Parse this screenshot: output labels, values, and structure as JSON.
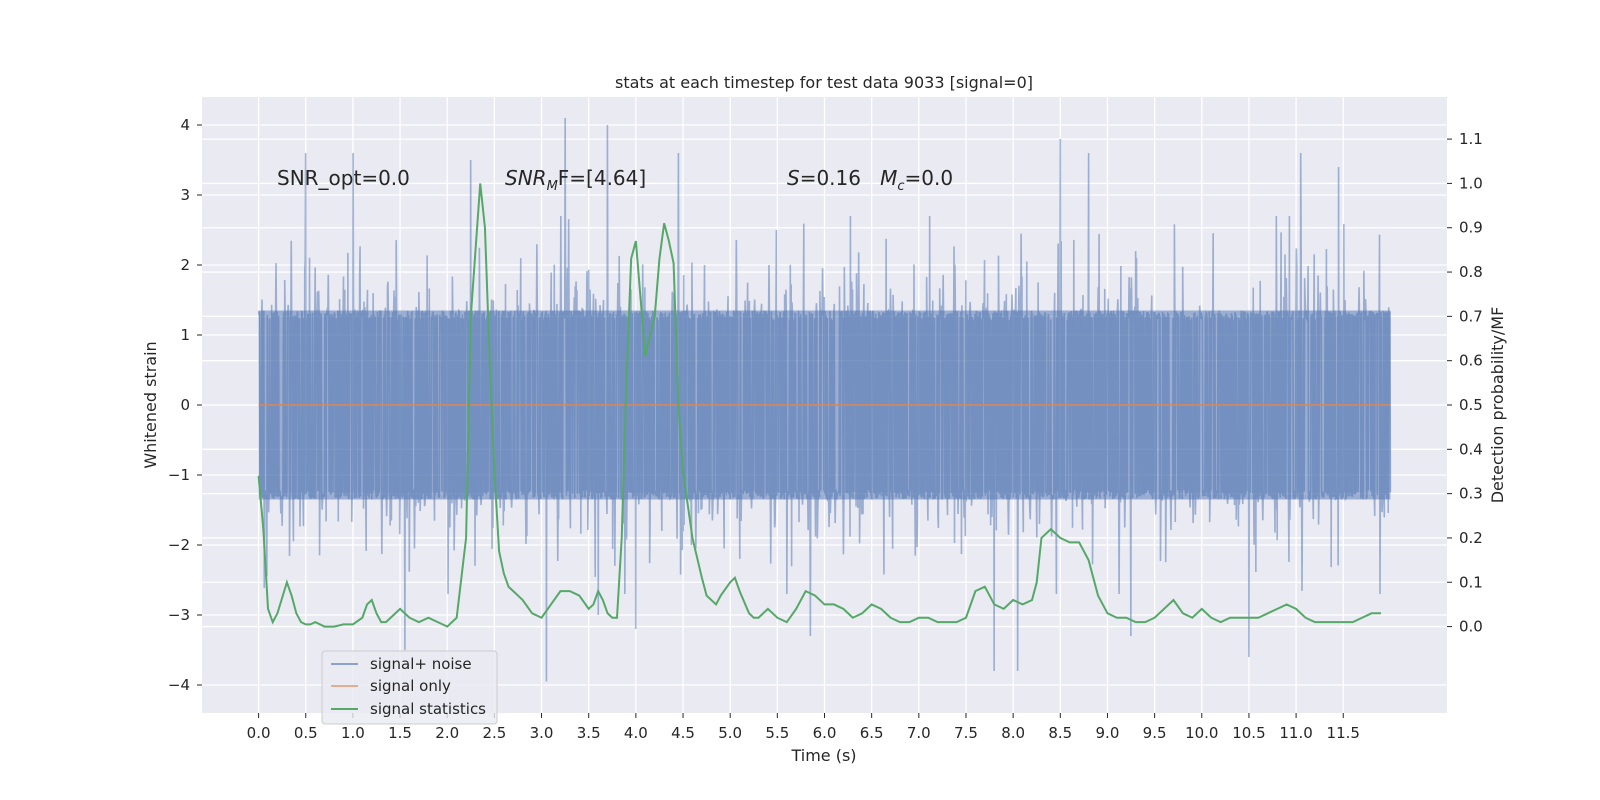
{
  "chart_data": {
    "type": "line",
    "title": "stats at each timestep for test data 9033 [signal=0]",
    "xlabel": "Time (s)",
    "ylabel": "Whitened strain",
    "y2label": "Detection probability/MF",
    "xlim": [
      -0.6,
      12.6
    ],
    "ylim": [
      -4.4,
      4.4
    ],
    "y2lim": [
      -0.195,
      1.195
    ],
    "x_ticks": [
      0.0,
      0.5,
      1.0,
      1.5,
      2.0,
      2.5,
      3.0,
      3.5,
      4.0,
      4.5,
      5.0,
      5.5,
      6.0,
      6.5,
      7.0,
      7.5,
      8.0,
      8.5,
      9.0,
      9.5,
      10.0,
      10.5,
      11.0,
      11.5
    ],
    "x_tick_labels": [
      "0.0",
      "0.5",
      "1.0",
      "1.5",
      "2.0",
      "2.5",
      "3.0",
      "3.5",
      "4.0",
      "4.5",
      "5.0",
      "5.5",
      "6.0",
      "6.5",
      "7.0",
      "7.5",
      "8.0",
      "8.5",
      "9.0",
      "9.5",
      "10.0",
      "10.5",
      "11.0",
      "11.5"
    ],
    "y_ticks": [
      -4,
      -3,
      -2,
      -1,
      0,
      1,
      2,
      3,
      4
    ],
    "y_tick_labels": [
      "−4",
      "−3",
      "−2",
      "−1",
      "0",
      "1",
      "2",
      "3",
      "4"
    ],
    "y2_ticks": [
      0.0,
      0.1,
      0.2,
      0.3,
      0.4,
      0.5,
      0.6,
      0.7,
      0.8,
      0.9,
      1.0,
      1.1
    ],
    "y2_tick_labels": [
      "0.0",
      "0.1",
      "0.2",
      "0.3",
      "0.4",
      "0.5",
      "0.6",
      "0.7",
      "0.8",
      "0.9",
      "1.0",
      "1.1"
    ],
    "noise": {
      "name": "signal+ noise",
      "color": "#4c72b0",
      "t_start": 0.0,
      "t_end": 12.0,
      "n_samples": 2600,
      "core_amplitude": 1.35,
      "peaks": [
        {
          "t": 0.5,
          "v": 3.6
        },
        {
          "t": 1.0,
          "v": 3.6
        },
        {
          "t": 1.55,
          "v": -3.5
        },
        {
          "t": 2.25,
          "v": 3.5
        },
        {
          "t": 3.05,
          "v": -3.95
        },
        {
          "t": 3.25,
          "v": 4.1
        },
        {
          "t": 3.6,
          "v": -3.0
        },
        {
          "t": 3.7,
          "v": 4.0
        },
        {
          "t": 4.0,
          "v": -3.2
        },
        {
          "t": 4.45,
          "v": 3.6
        },
        {
          "t": 5.85,
          "v": -3.3
        },
        {
          "t": 7.8,
          "v": -3.8
        },
        {
          "t": 8.05,
          "v": -3.8
        },
        {
          "t": 8.5,
          "v": 3.8
        },
        {
          "t": 8.8,
          "v": 3.6
        },
        {
          "t": 9.25,
          "v": -3.3
        },
        {
          "t": 10.5,
          "v": -3.6
        },
        {
          "t": 11.05,
          "v": 3.6
        },
        {
          "t": 11.45,
          "v": 3.4
        }
      ]
    },
    "signal": {
      "name": "signal only",
      "color": "#dd8452",
      "x": [
        0.0,
        12.0
      ],
      "y": [
        0.0,
        0.0
      ]
    },
    "statistics": {
      "name": "signal statistics",
      "color": "#55a868",
      "x": [
        0.0,
        0.05,
        0.1,
        0.15,
        0.2,
        0.3,
        0.35,
        0.4,
        0.45,
        0.5,
        0.55,
        0.6,
        0.7,
        0.8,
        0.9,
        1.0,
        1.1,
        1.15,
        1.2,
        1.25,
        1.3,
        1.35,
        1.4,
        1.5,
        1.6,
        1.7,
        1.8,
        1.9,
        2.0,
        2.1,
        2.2,
        2.25,
        2.35,
        2.4,
        2.45,
        2.5,
        2.55,
        2.6,
        2.65,
        2.7,
        2.75,
        2.8,
        2.9,
        3.0,
        3.1,
        3.2,
        3.3,
        3.4,
        3.5,
        3.55,
        3.6,
        3.65,
        3.7,
        3.75,
        3.8,
        3.85,
        3.9,
        3.95,
        4.0,
        4.1,
        4.2,
        4.25,
        4.3,
        4.35,
        4.4,
        4.45,
        4.5,
        4.6,
        4.7,
        4.75,
        4.8,
        4.85,
        4.9,
        5.0,
        5.05,
        5.1,
        5.2,
        5.25,
        5.3,
        5.4,
        5.5,
        5.6,
        5.7,
        5.8,
        5.9,
        6.0,
        6.1,
        6.2,
        6.3,
        6.4,
        6.5,
        6.6,
        6.7,
        6.8,
        6.9,
        7.0,
        7.1,
        7.2,
        7.3,
        7.4,
        7.5,
        7.6,
        7.7,
        7.8,
        7.9,
        8.0,
        8.1,
        8.2,
        8.25,
        8.3,
        8.4,
        8.5,
        8.6,
        8.7,
        8.8,
        8.9,
        9.0,
        9.1,
        9.2,
        9.3,
        9.4,
        9.5,
        9.6,
        9.7,
        9.8,
        9.9,
        10.0,
        10.1,
        10.2,
        10.3,
        10.4,
        10.5,
        10.6,
        10.7,
        10.8,
        10.9,
        11.0,
        11.1,
        11.2,
        11.3,
        11.4,
        11.5,
        11.6,
        11.7,
        11.8,
        11.9
      ],
      "y": [
        0.34,
        0.22,
        0.04,
        0.01,
        0.03,
        0.1,
        0.07,
        0.03,
        0.01,
        0.005,
        0.005,
        0.01,
        0.0,
        0.0,
        0.005,
        0.005,
        0.02,
        0.05,
        0.06,
        0.03,
        0.01,
        0.01,
        0.02,
        0.04,
        0.02,
        0.01,
        0.02,
        0.01,
        0.0,
        0.02,
        0.2,
        0.7,
        1.0,
        0.9,
        0.6,
        0.35,
        0.17,
        0.12,
        0.09,
        0.08,
        0.07,
        0.06,
        0.03,
        0.02,
        0.05,
        0.08,
        0.08,
        0.07,
        0.04,
        0.05,
        0.08,
        0.06,
        0.03,
        0.02,
        0.02,
        0.2,
        0.55,
        0.83,
        0.87,
        0.61,
        0.7,
        0.83,
        0.91,
        0.87,
        0.82,
        0.5,
        0.35,
        0.2,
        0.11,
        0.07,
        0.06,
        0.05,
        0.07,
        0.1,
        0.11,
        0.08,
        0.03,
        0.02,
        0.02,
        0.04,
        0.02,
        0.01,
        0.04,
        0.08,
        0.07,
        0.05,
        0.05,
        0.04,
        0.02,
        0.03,
        0.05,
        0.04,
        0.02,
        0.01,
        0.01,
        0.02,
        0.02,
        0.01,
        0.01,
        0.01,
        0.02,
        0.08,
        0.09,
        0.05,
        0.04,
        0.06,
        0.05,
        0.06,
        0.1,
        0.2,
        0.22,
        0.2,
        0.19,
        0.19,
        0.15,
        0.07,
        0.03,
        0.02,
        0.02,
        0.01,
        0.01,
        0.02,
        0.04,
        0.06,
        0.03,
        0.02,
        0.04,
        0.02,
        0.01,
        0.02,
        0.02,
        0.02,
        0.02,
        0.03,
        0.04,
        0.05,
        0.04,
        0.02,
        0.01,
        0.01,
        0.01,
        0.01,
        0.01,
        0.02,
        0.03,
        0.03
      ]
    },
    "annotations": [
      {
        "key": "snr_opt",
        "text": "SNR_opt=0.0"
      },
      {
        "key": "snr_mf",
        "text": "SNR",
        "sub": "M",
        "text2": "F=[4.64]"
      },
      {
        "key": "s_mc",
        "text": "S",
        "text2": "=0.16   ",
        "text3": "M",
        "sub": "c",
        "text4": "=0.0"
      }
    ],
    "legend": {
      "placement": "lower-left",
      "entries": [
        "signal+ noise",
        "signal only",
        "signal statistics"
      ]
    },
    "grid": true
  }
}
